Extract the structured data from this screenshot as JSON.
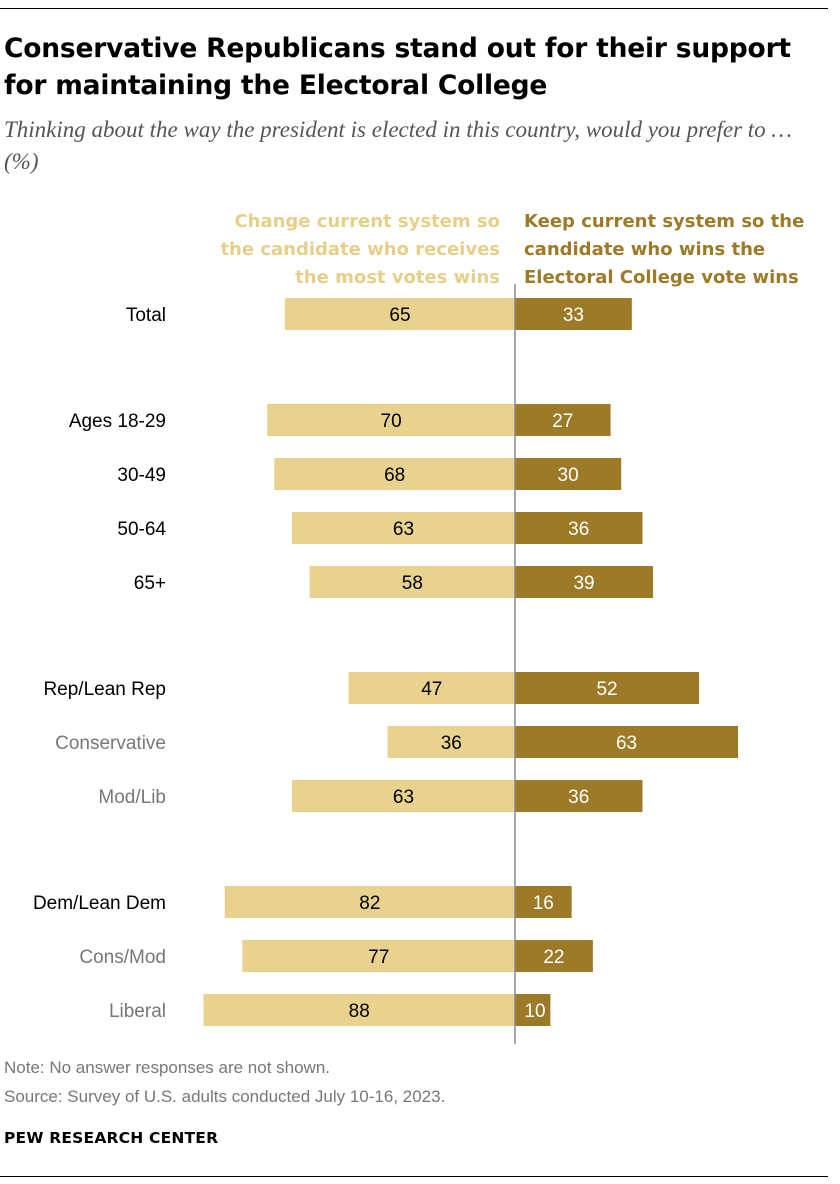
{
  "header": {
    "title": "Conservative Republicans stand out for their support for maintaining the Electoral College",
    "subtitle": "Thinking about the way the president is elected in this country, would you prefer to … (%)"
  },
  "legend": {
    "change": "Change current system so\nthe candidate who receives\nthe most votes wins",
    "keep": "Keep current system so the\ncandidate who wins the\nElectoral College vote wins"
  },
  "colors": {
    "change": "#e8d28e",
    "keep": "#9c7a27",
    "change_text": "#e6cf89",
    "keep_text": "#9c7a27",
    "primary_label": "#000000",
    "secondary_label": "#777777",
    "axis": "#888888"
  },
  "chart_data": {
    "type": "bar",
    "orientation": "horizontal-diverging",
    "categories": [
      "Total",
      "Ages 18-29",
      "30-49",
      "50-64",
      "65+",
      "Rep/Lean Rep",
      "Conservative",
      "Mod/Lib",
      "Dem/Lean Dem",
      "Cons/Mod",
      "Liberal"
    ],
    "groups": [
      0,
      1,
      1,
      1,
      1,
      2,
      2,
      2,
      3,
      3,
      3
    ],
    "subgroup": [
      false,
      false,
      false,
      false,
      false,
      false,
      true,
      true,
      false,
      true,
      true
    ],
    "series": [
      {
        "name": "Change current system so the candidate who receives the most votes wins",
        "key": "change",
        "values": [
          65,
          70,
          68,
          63,
          58,
          47,
          36,
          63,
          82,
          77,
          88
        ]
      },
      {
        "name": "Keep current system so the candidate who wins the Electoral College vote wins",
        "key": "keep",
        "values": [
          33,
          27,
          30,
          36,
          39,
          52,
          63,
          36,
          16,
          22,
          10
        ]
      }
    ],
    "unit": "%",
    "xlim": [
      -100,
      100
    ]
  },
  "footer": {
    "note": "Note: No answer responses are not shown.",
    "source": "Source: Survey of U.S. adults conducted July 10-16, 2023.",
    "brand": "PEW RESEARCH CENTER"
  }
}
